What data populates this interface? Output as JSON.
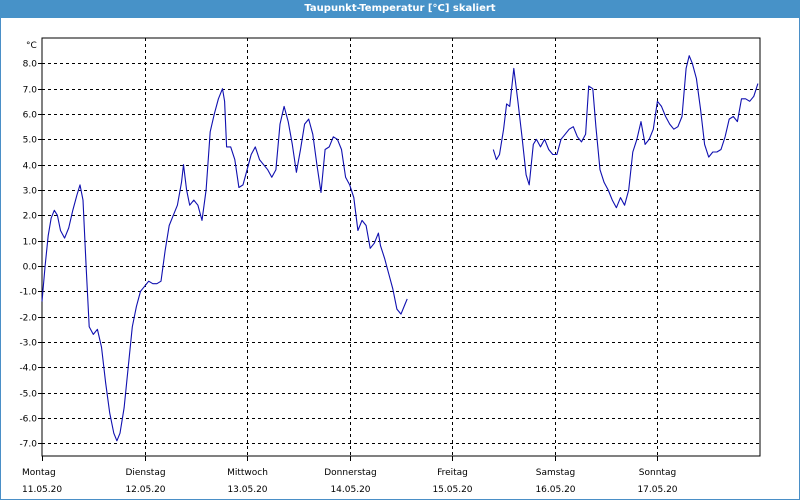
{
  "window": {
    "title": "Taupunkt-Temperatur [°C] skaliert"
  },
  "chart_data": {
    "type": "line",
    "title": "Taupunkt-Temperatur [°C] skaliert",
    "ylabel_unit": "°C",
    "ylim": [
      -7.5,
      9.0
    ],
    "y_ticks": [
      "8.0",
      "7.0",
      "6.0",
      "5.0",
      "4.0",
      "3.0",
      "2.0",
      "1.0",
      "0.0",
      "-1.0",
      "-2.0",
      "-3.0",
      "-4.0",
      "-5.0",
      "-6.0",
      "-7.0"
    ],
    "y_tick_values": [
      8,
      7,
      6,
      5,
      4,
      3,
      2,
      1,
      0,
      -1,
      -2,
      -3,
      -4,
      -5,
      -6,
      -7
    ],
    "xlim": [
      0,
      7
    ],
    "x_categories": [
      {
        "day": "Montag",
        "date": "11.05.20"
      },
      {
        "day": "Dienstag",
        "date": "12.05.20"
      },
      {
        "day": "Mittwoch",
        "date": "13.05.20"
      },
      {
        "day": "Donnerstag",
        "date": "14.05.20"
      },
      {
        "day": "Freitag",
        "date": "15.05.20"
      },
      {
        "day": "Samstag",
        "date": "16.05.20"
      },
      {
        "day": "Sonntag",
        "date": "17.05.20"
      }
    ],
    "grid": true,
    "line_color": "#1010b0",
    "series": [
      {
        "segments": [
          [
            [
              0.0,
              -1.4
            ],
            [
              0.03,
              0.0
            ],
            [
              0.06,
              1.2
            ],
            [
              0.09,
              1.9
            ],
            [
              0.12,
              2.2
            ],
            [
              0.15,
              2.0
            ],
            [
              0.18,
              1.4
            ],
            [
              0.22,
              1.1
            ],
            [
              0.26,
              1.5
            ],
            [
              0.3,
              2.2
            ],
            [
              0.34,
              2.8
            ],
            [
              0.37,
              3.2
            ],
            [
              0.4,
              2.6
            ],
            [
              0.43,
              0.0
            ],
            [
              0.46,
              -2.4
            ],
            [
              0.5,
              -2.7
            ],
            [
              0.54,
              -2.5
            ],
            [
              0.58,
              -3.2
            ],
            [
              0.62,
              -4.6
            ],
            [
              0.66,
              -5.8
            ],
            [
              0.7,
              -6.6
            ],
            [
              0.73,
              -6.9
            ],
            [
              0.76,
              -6.6
            ],
            [
              0.8,
              -5.6
            ],
            [
              0.84,
              -4.0
            ],
            [
              0.88,
              -2.4
            ],
            [
              0.92,
              -1.6
            ],
            [
              0.96,
              -1.0
            ],
            [
              1.0,
              -0.8
            ],
            [
              1.04,
              -0.6
            ],
            [
              1.08,
              -0.7
            ],
            [
              1.12,
              -0.7
            ],
            [
              1.16,
              -0.6
            ],
            [
              1.2,
              0.6
            ],
            [
              1.24,
              1.6
            ],
            [
              1.28,
              2.0
            ],
            [
              1.32,
              2.4
            ],
            [
              1.36,
              3.3
            ],
            [
              1.38,
              4.0
            ],
            [
              1.41,
              3.0
            ],
            [
              1.44,
              2.4
            ],
            [
              1.48,
              2.6
            ],
            [
              1.52,
              2.4
            ],
            [
              1.56,
              1.8
            ],
            [
              1.6,
              3.0
            ],
            [
              1.64,
              5.3
            ],
            [
              1.68,
              6.0
            ],
            [
              1.72,
              6.6
            ],
            [
              1.76,
              7.0
            ],
            [
              1.78,
              6.5
            ],
            [
              1.8,
              4.7
            ],
            [
              1.84,
              4.7
            ],
            [
              1.88,
              4.2
            ],
            [
              1.92,
              3.1
            ],
            [
              1.96,
              3.2
            ],
            [
              2.0,
              3.8
            ],
            [
              2.04,
              4.4
            ],
            [
              2.08,
              4.7
            ],
            [
              2.12,
              4.2
            ],
            [
              2.16,
              4.0
            ],
            [
              2.2,
              3.8
            ],
            [
              2.24,
              3.5
            ],
            [
              2.28,
              3.8
            ],
            [
              2.32,
              5.6
            ],
            [
              2.36,
              6.3
            ],
            [
              2.4,
              5.7
            ],
            [
              2.44,
              4.8
            ],
            [
              2.48,
              3.7
            ],
            [
              2.52,
              4.6
            ],
            [
              2.56,
              5.6
            ],
            [
              2.6,
              5.8
            ],
            [
              2.64,
              5.2
            ],
            [
              2.68,
              4.0
            ],
            [
              2.72,
              2.9
            ],
            [
              2.76,
              4.6
            ],
            [
              2.8,
              4.7
            ],
            [
              2.84,
              5.1
            ],
            [
              2.88,
              5.0
            ],
            [
              2.92,
              4.6
            ],
            [
              2.96,
              3.5
            ],
            [
              3.0,
              3.2
            ],
            [
              3.04,
              2.7
            ],
            [
              3.08,
              1.4
            ],
            [
              3.12,
              1.8
            ],
            [
              3.16,
              1.6
            ],
            [
              3.2,
              0.7
            ],
            [
              3.24,
              0.9
            ],
            [
              3.28,
              1.3
            ],
            [
              3.3,
              0.8
            ],
            [
              3.34,
              0.3
            ],
            [
              3.38,
              -0.3
            ],
            [
              3.42,
              -0.9
            ],
            [
              3.46,
              -1.7
            ],
            [
              3.5,
              -1.9
            ],
            [
              3.54,
              -1.5
            ],
            [
              3.56,
              -1.3
            ]
          ],
          [
            [
              4.4,
              4.6
            ],
            [
              4.43,
              4.2
            ],
            [
              4.46,
              4.4
            ],
            [
              4.5,
              5.4
            ],
            [
              4.53,
              6.4
            ],
            [
              4.56,
              6.3
            ],
            [
              4.6,
              7.8
            ],
            [
              4.64,
              6.5
            ],
            [
              4.68,
              5.1
            ],
            [
              4.72,
              3.6
            ],
            [
              4.75,
              3.2
            ],
            [
              4.79,
              4.8
            ],
            [
              4.82,
              5.0
            ],
            [
              4.86,
              4.7
            ],
            [
              4.9,
              5.0
            ],
            [
              4.94,
              4.6
            ],
            [
              4.98,
              4.4
            ],
            [
              5.02,
              4.4
            ],
            [
              5.06,
              5.0
            ],
            [
              5.1,
              5.2
            ],
            [
              5.14,
              5.4
            ],
            [
              5.18,
              5.5
            ],
            [
              5.22,
              5.1
            ],
            [
              5.26,
              4.9
            ],
            [
              5.3,
              5.2
            ],
            [
              5.33,
              7.1
            ],
            [
              5.37,
              7.0
            ],
            [
              5.4,
              5.5
            ],
            [
              5.44,
              3.8
            ],
            [
              5.48,
              3.3
            ],
            [
              5.52,
              3.0
            ],
            [
              5.56,
              2.6
            ],
            [
              5.6,
              2.3
            ],
            [
              5.64,
              2.7
            ],
            [
              5.68,
              2.4
            ],
            [
              5.72,
              3.0
            ],
            [
              5.76,
              4.5
            ],
            [
              5.8,
              5.0
            ],
            [
              5.84,
              5.7
            ],
            [
              5.88,
              4.8
            ],
            [
              5.92,
              5.0
            ],
            [
              5.96,
              5.4
            ],
            [
              6.0,
              6.5
            ],
            [
              6.04,
              6.3
            ],
            [
              6.08,
              5.9
            ],
            [
              6.12,
              5.6
            ],
            [
              6.16,
              5.4
            ],
            [
              6.2,
              5.5
            ],
            [
              6.24,
              5.9
            ],
            [
              6.28,
              7.8
            ],
            [
              6.31,
              8.3
            ],
            [
              6.34,
              8.0
            ],
            [
              6.38,
              7.4
            ],
            [
              6.42,
              6.2
            ],
            [
              6.46,
              4.8
            ],
            [
              6.5,
              4.3
            ],
            [
              6.54,
              4.5
            ],
            [
              6.58,
              4.5
            ],
            [
              6.62,
              4.6
            ],
            [
              6.66,
              5.1
            ],
            [
              6.7,
              5.8
            ],
            [
              6.74,
              5.9
            ],
            [
              6.78,
              5.7
            ],
            [
              6.82,
              6.6
            ],
            [
              6.86,
              6.6
            ],
            [
              6.9,
              6.5
            ],
            [
              6.94,
              6.7
            ],
            [
              6.98,
              7.2
            ]
          ]
        ]
      }
    ]
  }
}
